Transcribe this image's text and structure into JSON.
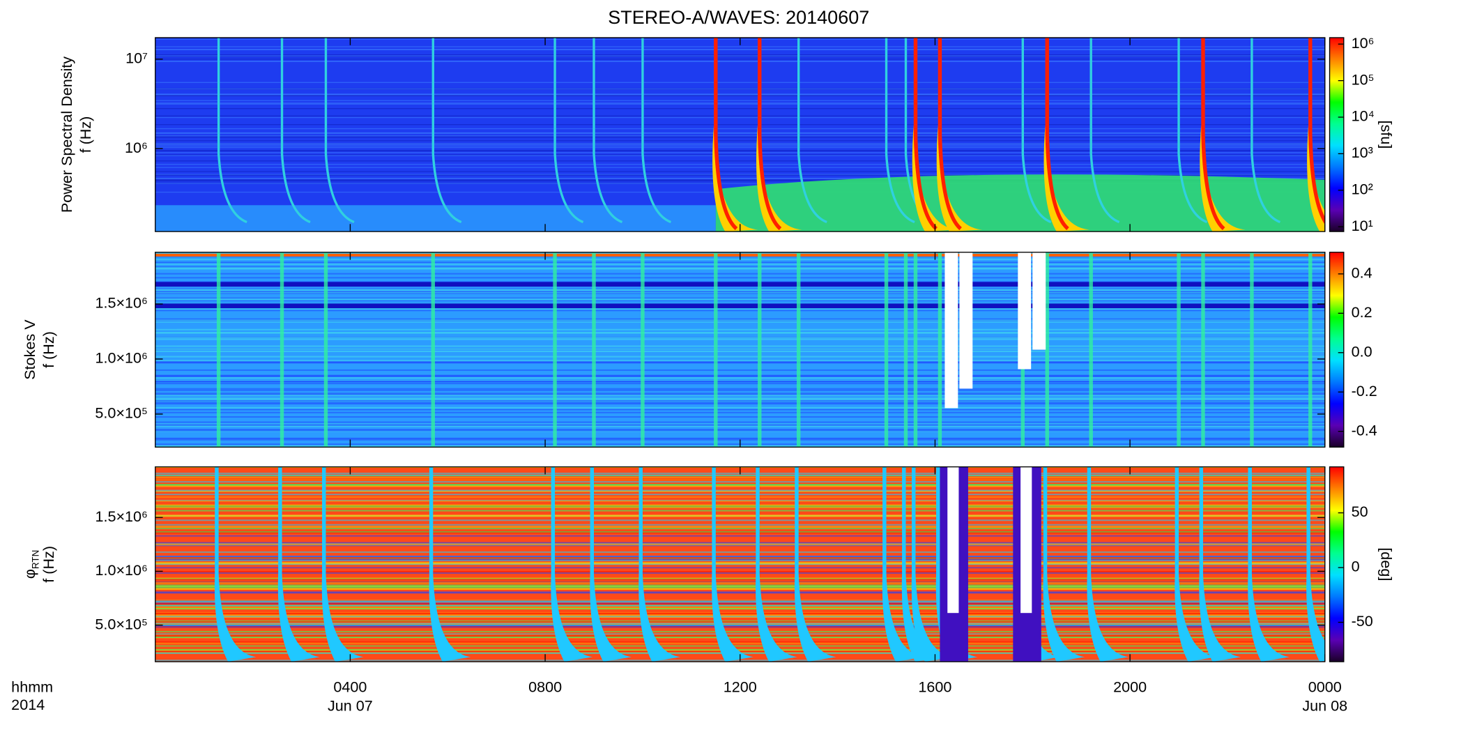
{
  "title": "STEREO-A/WAVES: 20140607",
  "x_axis": {
    "xlim": [
      0,
      24
    ],
    "xticks": [
      {
        "value": 4,
        "label": "0400"
      },
      {
        "value": 8,
        "label": "0800"
      },
      {
        "value": 12,
        "label": "1200"
      },
      {
        "value": 16,
        "label": "1600"
      },
      {
        "value": 20,
        "label": "2000"
      },
      {
        "value": 24,
        "label": "0000"
      }
    ],
    "date_labels": [
      {
        "value": 4,
        "label": "Jun 07"
      },
      {
        "value": 24,
        "label": "Jun 08"
      }
    ],
    "row_labels": [
      "hhmm",
      "2014"
    ]
  },
  "colormap": [
    "#1a0028",
    "#5a00b4",
    "#0000ff",
    "#0078ff",
    "#00e0ff",
    "#00ff90",
    "#00ff00",
    "#ffff00",
    "#ff8000",
    "#ff0000"
  ],
  "chart_data": [
    {
      "type": "heatmap",
      "ylabel": [
        "Power Spectral Density",
        "f (Hz)"
      ],
      "log_y": true,
      "ylim": [
        118000,
        17400000
      ],
      "yticks": [
        {
          "value": 1000000,
          "label": "10⁶"
        },
        {
          "value": 10000000,
          "label": "10⁷"
        }
      ],
      "colorbar": {
        "label": "[sfu]",
        "log": true,
        "lim": [
          7.4,
          1500000
        ],
        "ticks": [
          {
            "value": 10,
            "label": "10¹"
          },
          {
            "value": 100,
            "label": "10²"
          },
          {
            "value": 1000,
            "label": "10³"
          },
          {
            "value": 10000,
            "label": "10⁴"
          },
          {
            "value": 100000,
            "label": "10⁵"
          },
          {
            "value": 1000000,
            "label": "10⁶"
          }
        ]
      }
    },
    {
      "type": "heatmap",
      "ylabel": [
        "Stokes V",
        "f (Hz)"
      ],
      "log_y": false,
      "ylim": [
        200000,
        1970000
      ],
      "yticks": [
        {
          "value": 500000,
          "label": "5.0×10⁵"
        },
        {
          "value": 1000000,
          "label": "1.0×10⁶"
        },
        {
          "value": 1500000,
          "label": "1.5×10⁶"
        }
      ],
      "colorbar": {
        "label": "",
        "log": false,
        "lim": [
          -0.48,
          0.51
        ],
        "ticks": [
          -0.4,
          -0.2,
          {
            "value": 0,
            "label": "0.0"
          },
          0.2,
          0.4
        ]
      }
    },
    {
      "type": "heatmap",
      "ylabel": [
        "φ",
        "f (Hz)"
      ],
      "ylabel_sub": "RTN",
      "log_y": false,
      "ylim": [
        160000,
        1970000
      ],
      "yticks": [
        {
          "value": 500000,
          "label": "5.0×10⁵"
        },
        {
          "value": 1000000,
          "label": "1.0×10⁶"
        },
        {
          "value": 1500000,
          "label": "1.5×10⁶"
        }
      ],
      "colorbar": {
        "label": "[deg]",
        "log": false,
        "lim": [
          -86,
          92
        ],
        "ticks": [
          -50,
          0,
          50
        ]
      }
    }
  ]
}
